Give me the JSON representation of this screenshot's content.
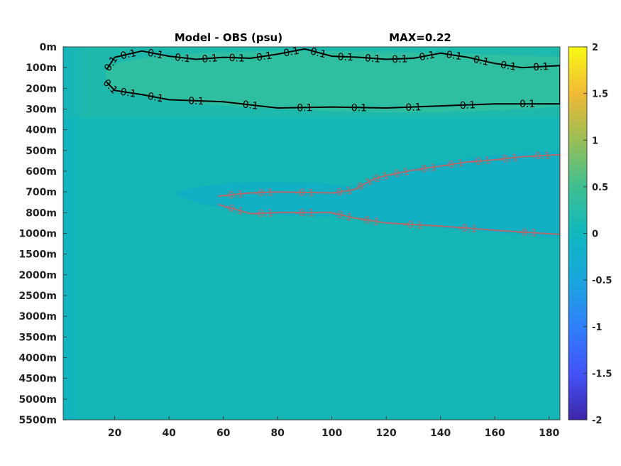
{
  "chart_data": {
    "type": "heatmap",
    "title_left": "Model - OBS (psu)",
    "title_right": "MAX=0.22",
    "x_ticks": [
      20,
      40,
      60,
      80,
      100,
      120,
      140,
      160,
      180
    ],
    "x_range": [
      1,
      184
    ],
    "y_ticks": [
      "0m",
      "100m",
      "200m",
      "300m",
      "400m",
      "500m",
      "600m",
      "700m",
      "800m",
      "1000m",
      "1500m",
      "2000m",
      "2500m",
      "3000m",
      "3500m",
      "4000m",
      "4500m",
      "5000m",
      "5500m"
    ],
    "colorbar": {
      "min": -2,
      "max": 2,
      "ticks": [
        "2",
        "1.5",
        "1",
        "0.5",
        "0",
        "-0.5",
        "-1",
        "-1.5",
        "-2"
      ],
      "colormap": "parula"
    },
    "background_value": 0.0,
    "contours": [
      {
        "level": 0.1,
        "label": "0.1",
        "color": "#000000",
        "upper_x": [
          17,
          20,
          30,
          40,
          50,
          60,
          70,
          80,
          90,
          100,
          110,
          120,
          130,
          140,
          150,
          160,
          170,
          184
        ],
        "upper_y": [
          1.1,
          0.5,
          0.2,
          0.45,
          0.6,
          0.5,
          0.55,
          0.35,
          0.1,
          0.45,
          0.5,
          0.6,
          0.55,
          0.3,
          0.5,
          0.8,
          1.0,
          0.9
        ],
        "lower_x": [
          17,
          20,
          30,
          40,
          60,
          80,
          100,
          120,
          140,
          160,
          184
        ],
        "lower_y": [
          1.7,
          2.1,
          2.3,
          2.55,
          2.65,
          2.95,
          2.9,
          2.95,
          2.85,
          2.75,
          2.75
        ]
      },
      {
        "level": -0.1,
        "label": "-0.1",
        "color": "#b06a6a",
        "upper_x": [
          58,
          70,
          80,
          100,
          108,
          115,
          120,
          130,
          140,
          150,
          160,
          170,
          184
        ],
        "upper_y": [
          7.2,
          7.05,
          7.0,
          7.05,
          6.9,
          6.4,
          6.2,
          5.95,
          5.75,
          5.55,
          5.45,
          5.3,
          5.2
        ],
        "lower_x": [
          58,
          70,
          80,
          100,
          108,
          120,
          140,
          160,
          184
        ],
        "lower_y": [
          7.6,
          8.05,
          8.0,
          8.0,
          8.25,
          8.5,
          8.65,
          8.85,
          9.05
        ]
      }
    ]
  }
}
